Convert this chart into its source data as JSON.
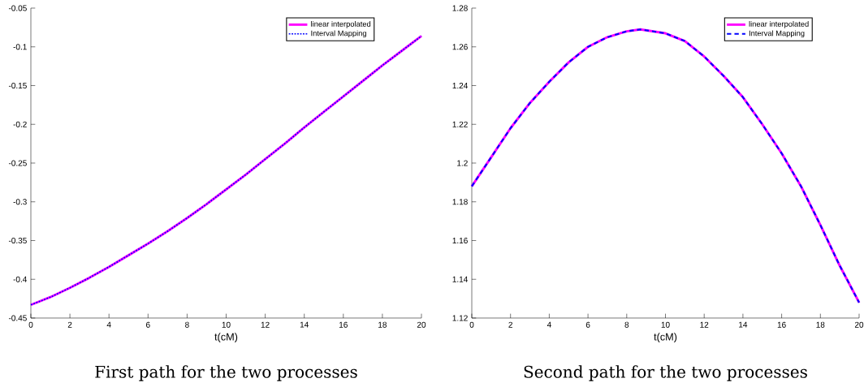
{
  "chart_data": [
    {
      "type": "line",
      "title": "First path for the two processes",
      "xlabel": "t(cM)",
      "x": [
        0,
        1,
        2,
        3,
        4,
        5,
        6,
        7,
        8,
        9,
        10,
        11,
        12,
        13,
        14,
        15,
        16,
        17,
        18,
        19,
        20
      ],
      "series": [
        {
          "name": "linear interpolated",
          "color": "#ff00ff",
          "line_style": "solid",
          "values": [
            -0.433,
            -0.423,
            -0.411,
            -0.398,
            -0.384,
            -0.369,
            -0.354,
            -0.338,
            -0.321,
            -0.303,
            -0.284,
            -0.265,
            -0.245,
            -0.225,
            -0.204,
            -0.184,
            -0.164,
            -0.144,
            -0.124,
            -0.105,
            -0.086
          ]
        },
        {
          "name": "Interval Mapping",
          "color": "#0000ff",
          "line_style": "dotted",
          "values": [
            -0.433,
            -0.423,
            -0.411,
            -0.398,
            -0.384,
            -0.369,
            -0.354,
            -0.338,
            -0.321,
            -0.303,
            -0.284,
            -0.265,
            -0.245,
            -0.225,
            -0.204,
            -0.184,
            -0.164,
            -0.144,
            -0.124,
            -0.105,
            -0.086
          ]
        }
      ],
      "xlim": [
        0,
        20
      ],
      "ylim": [
        -0.45,
        -0.05
      ],
      "xticks": [
        0,
        2,
        4,
        6,
        8,
        10,
        12,
        14,
        16,
        18,
        20
      ],
      "yticks": [
        -0.45,
        -0.4,
        -0.35,
        -0.3,
        -0.25,
        -0.2,
        -0.15,
        -0.1,
        -0.05
      ],
      "legend": "top right"
    },
    {
      "type": "line",
      "title": "Second path for the two processes",
      "xlabel": "t(cM)",
      "x": [
        0,
        1,
        2,
        3,
        4,
        5,
        6,
        7,
        8,
        8.7,
        10,
        11,
        12,
        13,
        14,
        15,
        16,
        17,
        18,
        19,
        20
      ],
      "series": [
        {
          "name": "linear interpolated",
          "color": "#ff00ff",
          "line_style": "solid",
          "values": [
            1.188,
            1.203,
            1.218,
            1.231,
            1.242,
            1.252,
            1.26,
            1.265,
            1.268,
            1.269,
            1.267,
            1.263,
            1.255,
            1.245,
            1.234,
            1.22,
            1.205,
            1.188,
            1.168,
            1.147,
            1.128
          ]
        },
        {
          "name": "Interval Mapping",
          "color": "#0000ff",
          "line_style": "dashed",
          "values": [
            1.188,
            1.203,
            1.218,
            1.231,
            1.242,
            1.252,
            1.26,
            1.265,
            1.268,
            1.269,
            1.267,
            1.263,
            1.255,
            1.245,
            1.234,
            1.22,
            1.205,
            1.188,
            1.168,
            1.147,
            1.128
          ]
        }
      ],
      "xlim": [
        0,
        20
      ],
      "ylim": [
        1.12,
        1.28
      ],
      "xticks": [
        0,
        2,
        4,
        6,
        8,
        10,
        12,
        14,
        16,
        18,
        20
      ],
      "yticks": [
        1.12,
        1.14,
        1.16,
        1.18,
        1.2,
        1.22,
        1.24,
        1.26,
        1.28
      ],
      "legend": "top right"
    }
  ]
}
